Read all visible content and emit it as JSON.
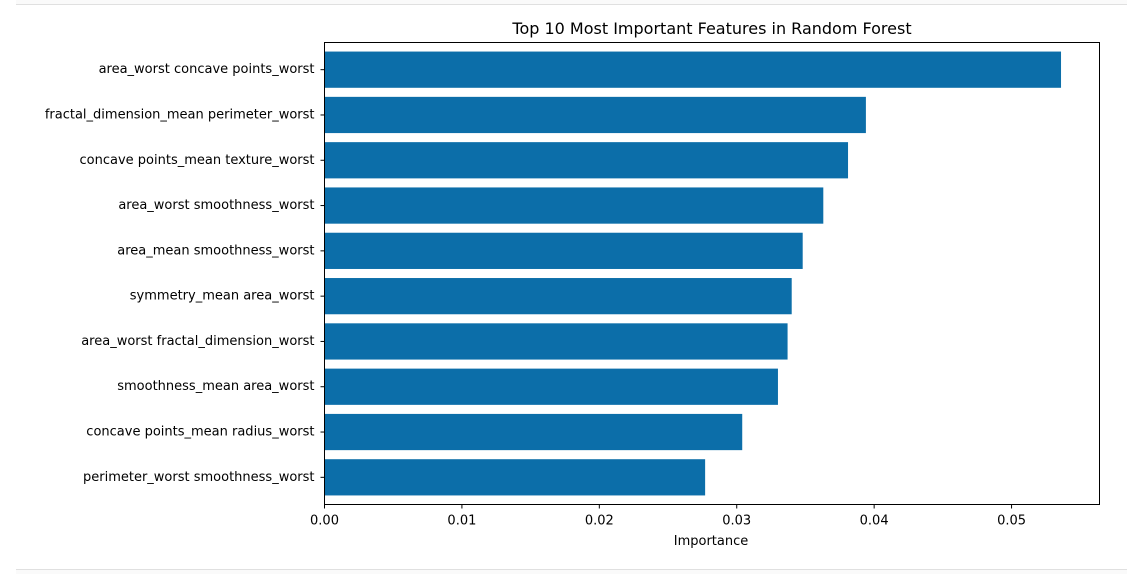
{
  "chart_data": {
    "type": "bar",
    "orientation": "horizontal",
    "title": "Top 10 Most Important Features in Random Forest",
    "xlabel": "Importance",
    "ylabel": "",
    "xlim": [
      0.0,
      0.0564
    ],
    "xticks": [
      "0.00",
      "0.01",
      "0.02",
      "0.03",
      "0.04",
      "0.05"
    ],
    "xtick_values": [
      0.0,
      0.01,
      0.02,
      0.03,
      0.04,
      0.05
    ],
    "bar_color": "#0c6ea9",
    "grid": false,
    "categories": [
      "area_worst concave points_worst",
      "fractal_dimension_mean perimeter_worst",
      "concave points_mean texture_worst",
      "area_worst smoothness_worst",
      "area_mean smoothness_worst",
      "symmetry_mean area_worst",
      "area_worst fractal_dimension_worst",
      "smoothness_mean area_worst",
      "concave points_mean radius_worst",
      "perimeter_worst smoothness_worst"
    ],
    "values": [
      0.0536,
      0.0394,
      0.0381,
      0.0363,
      0.0348,
      0.034,
      0.0337,
      0.033,
      0.0304,
      0.0277
    ]
  }
}
